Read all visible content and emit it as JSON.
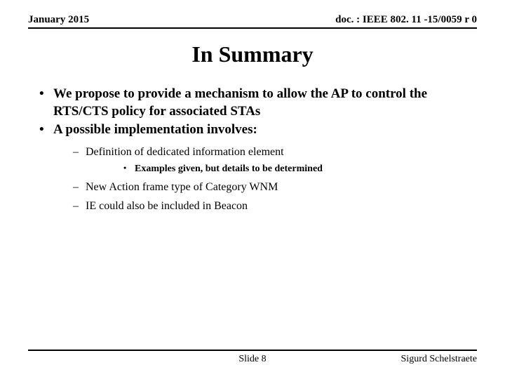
{
  "header": {
    "date": "January 2015",
    "docref": "doc. : IEEE 802. 11 -15/0059 r 0"
  },
  "title": "In Summary",
  "bullets": {
    "b1": "We propose to provide a mechanism to allow the AP to control the RTS/CTS policy for associated STAs",
    "b2": "A possible implementation involves:",
    "b2_1": "Definition of dedicated information element",
    "b2_1_1": "Examples given, but details to be determined",
    "b2_2": "New Action frame type of Category WNM",
    "b2_3": "IE could also be included in Beacon"
  },
  "footer": {
    "slide": "Slide 8",
    "author": "Sigurd Schelstraete"
  }
}
